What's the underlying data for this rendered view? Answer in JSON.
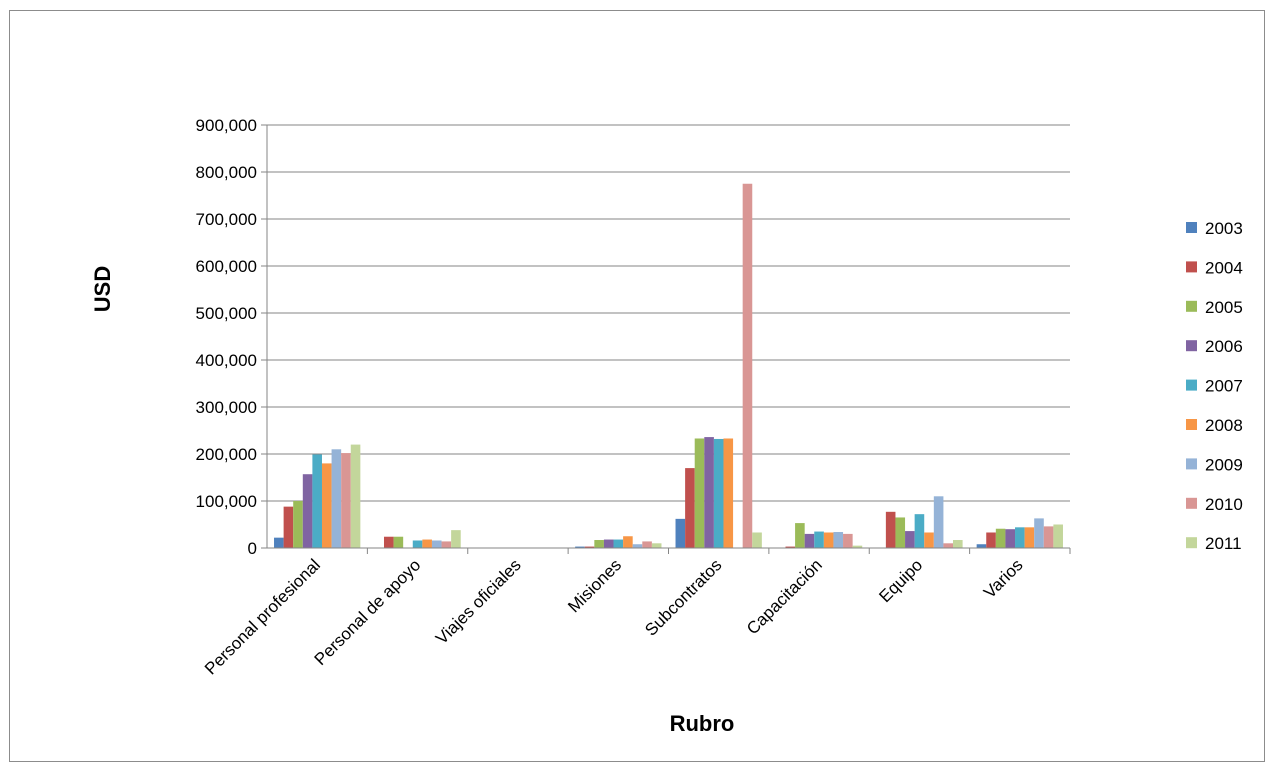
{
  "chart_data": {
    "type": "bar",
    "xlabel": "Rubro",
    "ylabel": "USD",
    "ylim": [
      0,
      900000
    ],
    "yticks": [
      0,
      100000,
      200000,
      300000,
      400000,
      500000,
      600000,
      700000,
      800000,
      900000
    ],
    "ytick_labels": [
      "0",
      "100,000",
      "200,000",
      "300,000",
      "400,000",
      "500,000",
      "600,000",
      "700,000",
      "800,000",
      "900,000"
    ],
    "grid": true,
    "legend_position": "right",
    "categories": [
      "Personal profesional",
      "Personal de apoyo",
      "Viajes oficiales",
      "Misiones",
      "Subcontratos",
      "Capacitación",
      "Equipo",
      "Varios"
    ],
    "series": [
      {
        "name": "2003",
        "color": "#4f81bd",
        "values": [
          22000,
          0,
          0,
          3000,
          62000,
          0,
          0,
          8000
        ]
      },
      {
        "name": "2004",
        "color": "#c0504d",
        "values": [
          88000,
          24000,
          0,
          3000,
          170000,
          3000,
          77000,
          33000
        ]
      },
      {
        "name": "2005",
        "color": "#9bbb59",
        "values": [
          100000,
          24000,
          0,
          17000,
          233000,
          53000,
          65000,
          41000
        ]
      },
      {
        "name": "2006",
        "color": "#8064a2",
        "values": [
          157000,
          0,
          0,
          18000,
          236000,
          30000,
          36000,
          40000
        ]
      },
      {
        "name": "2007",
        "color": "#4bacc6",
        "values": [
          199000,
          16000,
          0,
          18000,
          232000,
          35000,
          72000,
          44000
        ]
      },
      {
        "name": "2008",
        "color": "#f79646",
        "values": [
          180000,
          18000,
          0,
          25000,
          233000,
          33000,
          33000,
          44000
        ]
      },
      {
        "name": "2009",
        "color": "#95b3d7",
        "values": [
          210000,
          16000,
          0,
          8000,
          0,
          34000,
          110000,
          63000
        ]
      },
      {
        "name": "2010",
        "color": "#d99694",
        "values": [
          202000,
          14000,
          0,
          14000,
          775000,
          30000,
          10000,
          46000
        ]
      },
      {
        "name": "2011",
        "color": "#c3d69b",
        "values": [
          220000,
          38000,
          0,
          10000,
          33000,
          5000,
          17000,
          50000
        ]
      }
    ]
  }
}
